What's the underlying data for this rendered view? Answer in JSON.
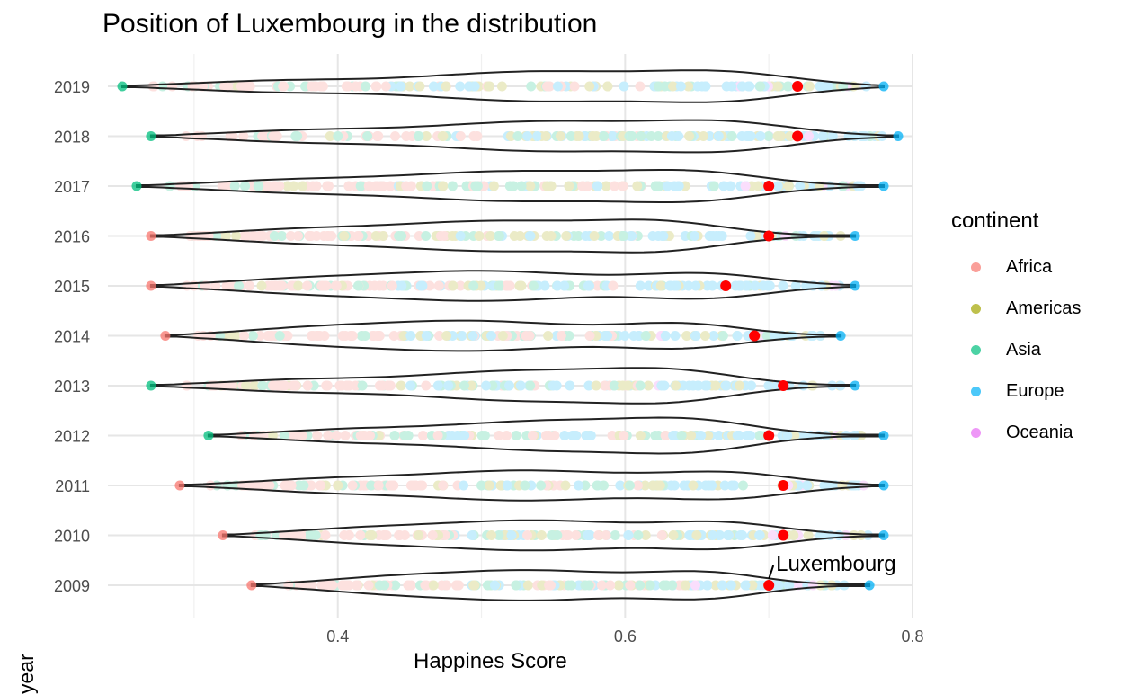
{
  "chart_data": {
    "type": "scatter",
    "title": "Position of Luxembourg in the distribution",
    "xlabel": "Happines Score",
    "ylabel": "year",
    "xlim": [
      0.24,
      0.8
    ],
    "x_ticks": [
      "0.4",
      "0.6",
      "0.8"
    ],
    "x_tick_values": [
      0.4,
      0.6,
      0.8
    ],
    "categories": [
      "2009",
      "2010",
      "2011",
      "2012",
      "2013",
      "2014",
      "2015",
      "2016",
      "2017",
      "2018",
      "2019"
    ],
    "grid": true,
    "legend": {
      "title": "continent",
      "position": "right",
      "entries": [
        {
          "name": "Africa",
          "color": "#F8766D"
        },
        {
          "name": "Americas",
          "color": "#A3A500"
        },
        {
          "name": "Asia",
          "color": "#00BF7D"
        },
        {
          "name": "Europe",
          "color": "#00B0F6"
        },
        {
          "name": "Oceania",
          "color": "#E76BF3"
        }
      ]
    },
    "range_by_year": [
      {
        "year": "2009",
        "min": 0.34,
        "max": 0.77,
        "min_continent": "Africa",
        "max_continent": "Europe"
      },
      {
        "year": "2010",
        "min": 0.32,
        "max": 0.78,
        "min_continent": "Africa",
        "max_continent": "Europe"
      },
      {
        "year": "2011",
        "min": 0.29,
        "max": 0.78,
        "min_continent": "Africa",
        "max_continent": "Europe"
      },
      {
        "year": "2012",
        "min": 0.31,
        "max": 0.78,
        "min_continent": "Asia",
        "max_continent": "Europe"
      },
      {
        "year": "2013",
        "min": 0.27,
        "max": 0.76,
        "min_continent": "Asia",
        "max_continent": "Europe"
      },
      {
        "year": "2014",
        "min": 0.28,
        "max": 0.75,
        "min_continent": "Africa",
        "max_continent": "Europe"
      },
      {
        "year": "2015",
        "min": 0.27,
        "max": 0.76,
        "min_continent": "Africa",
        "max_continent": "Europe"
      },
      {
        "year": "2016",
        "min": 0.27,
        "max": 0.76,
        "min_continent": "Africa",
        "max_continent": "Europe"
      },
      {
        "year": "2017",
        "min": 0.26,
        "max": 0.78,
        "min_continent": "Asia",
        "max_continent": "Europe"
      },
      {
        "year": "2018",
        "min": 0.27,
        "max": 0.79,
        "min_continent": "Asia",
        "max_continent": "Europe"
      },
      {
        "year": "2019",
        "min": 0.25,
        "max": 0.78,
        "min_continent": "Asia",
        "max_continent": "Europe"
      }
    ],
    "luxembourg": {
      "label": "Luxembourg",
      "color": "#FF0000",
      "values": [
        {
          "year": "2009",
          "x": 0.7
        },
        {
          "year": "2010",
          "x": 0.71
        },
        {
          "year": "2011",
          "x": 0.71
        },
        {
          "year": "2012",
          "x": 0.7
        },
        {
          "year": "2013",
          "x": 0.71
        },
        {
          "year": "2014",
          "x": 0.69
        },
        {
          "year": "2015",
          "x": 0.67
        },
        {
          "year": "2016",
          "x": 0.7
        },
        {
          "year": "2017",
          "x": 0.7
        },
        {
          "year": "2018",
          "x": 0.72
        },
        {
          "year": "2019",
          "x": 0.72
        }
      ]
    }
  }
}
